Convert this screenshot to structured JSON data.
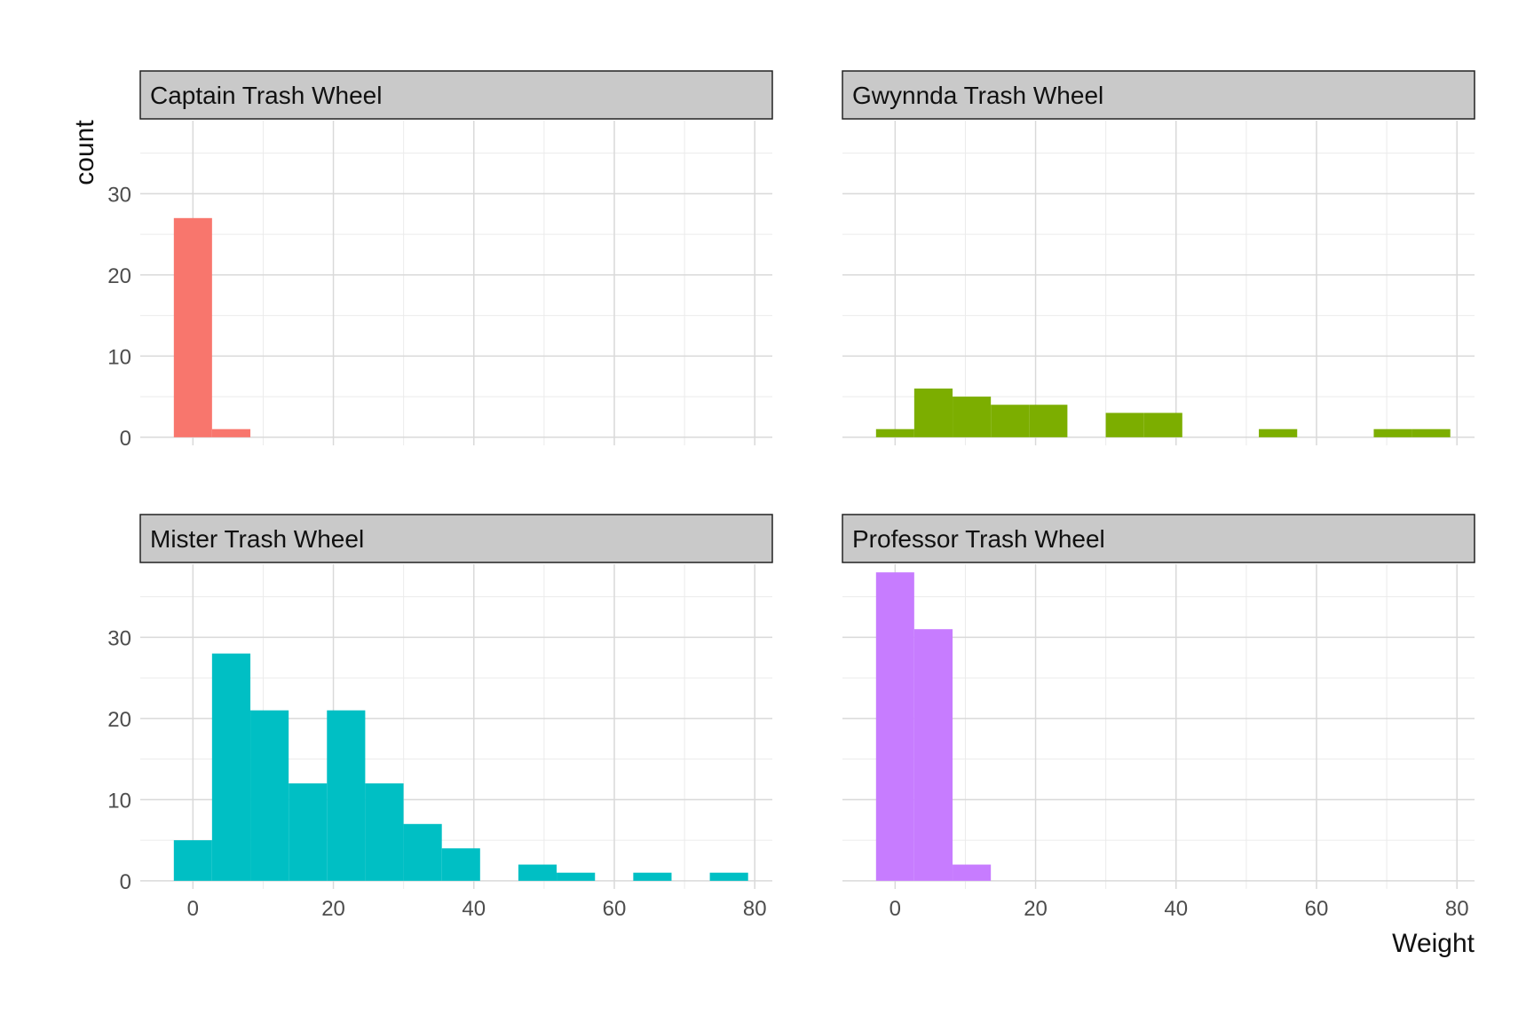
{
  "chart_data": {
    "type": "bar",
    "chart_kind": "histogram",
    "layout": "facet 2x2 (shared axes)",
    "xlabel": "Weight",
    "ylabel": "count",
    "xlim": [
      -7.5,
      82.5
    ],
    "ylim": [
      -1,
      39
    ],
    "x_ticks": [
      0,
      20,
      40,
      60,
      80
    ],
    "y_ticks": [
      0,
      10,
      20,
      30
    ],
    "grid": true,
    "bin_width": 5.45,
    "facets": [
      {
        "name": "Captain Trash Wheel",
        "color": "#F8766D",
        "bins": [
          {
            "x0": -2.72,
            "x1": 2.72,
            "count": 27
          },
          {
            "x0": 2.72,
            "x1": 8.18,
            "count": 1
          }
        ]
      },
      {
        "name": "Gwynnda Trash Wheel",
        "color": "#7CAE00",
        "bins": [
          {
            "x0": -2.72,
            "x1": 2.72,
            "count": 1
          },
          {
            "x0": 2.72,
            "x1": 8.18,
            "count": 6
          },
          {
            "x0": 8.18,
            "x1": 13.63,
            "count": 5
          },
          {
            "x0": 13.63,
            "x1": 19.08,
            "count": 4
          },
          {
            "x0": 19.08,
            "x1": 24.53,
            "count": 4
          },
          {
            "x0": 29.99,
            "x1": 35.44,
            "count": 3
          },
          {
            "x0": 35.44,
            "x1": 40.89,
            "count": 3
          },
          {
            "x0": 51.79,
            "x1": 57.25,
            "count": 1
          },
          {
            "x0": 68.15,
            "x1": 73.6,
            "count": 1
          },
          {
            "x0": 73.6,
            "x1": 79.05,
            "count": 1
          }
        ]
      },
      {
        "name": "Mister Trash Wheel",
        "color": "#00BFC4",
        "bins": [
          {
            "x0": -2.72,
            "x1": 2.72,
            "count": 5
          },
          {
            "x0": 2.72,
            "x1": 8.18,
            "count": 28
          },
          {
            "x0": 8.18,
            "x1": 13.63,
            "count": 21
          },
          {
            "x0": 13.63,
            "x1": 19.08,
            "count": 12
          },
          {
            "x0": 19.08,
            "x1": 24.53,
            "count": 21
          },
          {
            "x0": 24.53,
            "x1": 29.99,
            "count": 12
          },
          {
            "x0": 29.99,
            "x1": 35.44,
            "count": 7
          },
          {
            "x0": 35.44,
            "x1": 40.89,
            "count": 4
          },
          {
            "x0": 46.34,
            "x1": 51.79,
            "count": 2
          },
          {
            "x0": 51.79,
            "x1": 57.25,
            "count": 1
          },
          {
            "x0": 62.7,
            "x1": 68.15,
            "count": 1
          },
          {
            "x0": 73.6,
            "x1": 79.05,
            "count": 1
          }
        ]
      },
      {
        "name": "Professor Trash Wheel",
        "color": "#C77CFF",
        "bins": [
          {
            "x0": -2.72,
            "x1": 2.72,
            "count": 38
          },
          {
            "x0": 2.72,
            "x1": 8.18,
            "count": 31
          },
          {
            "x0": 8.18,
            "x1": 13.63,
            "count": 2
          }
        ]
      }
    ]
  }
}
